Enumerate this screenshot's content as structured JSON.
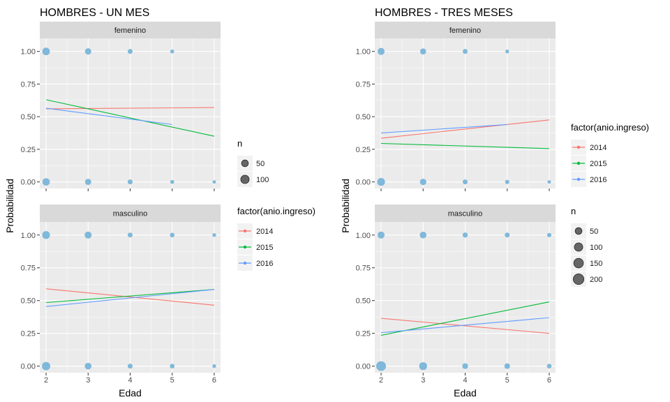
{
  "colors": {
    "panel_bg": "#EBEBEB",
    "strip_bg": "#D9D9D9",
    "grid": "#FFFFFF",
    "text": "#000000",
    "tick_text": "#4D4D4D",
    "point": "#6BAED6",
    "series_2014": "#F8766D",
    "series_2015": "#00BA38",
    "series_2016": "#619CFF"
  },
  "chart_data": [
    {
      "type": "scatter",
      "title": "HOMBRES - UN MES",
      "xlabel": "Edad",
      "ylabel": "Probabilidad",
      "xlim": [
        1.85,
        6.15
      ],
      "ylim": [
        -0.05,
        1.1
      ],
      "x_ticks": [
        2,
        3,
        4,
        5,
        6
      ],
      "y_ticks": [
        0,
        0.25,
        0.5,
        0.75,
        1
      ],
      "y_tick_labels": [
        "0.00",
        "0.25",
        "0.50",
        "0.75",
        "1.00"
      ],
      "grid": true,
      "legends": [
        {
          "title": "n",
          "kind": "size",
          "entries": [
            {
              "label": "50",
              "value": 50
            },
            {
              "label": "100",
              "value": 100
            }
          ]
        },
        {
          "title": "factor(anio.ingreso)",
          "kind": "color",
          "entries": [
            {
              "label": "2014",
              "color_key": "series_2014"
            },
            {
              "label": "2015",
              "color_key": "series_2015"
            },
            {
              "label": "2016",
              "color_key": "series_2016"
            }
          ]
        }
      ],
      "legend_placement": "right",
      "facets": [
        {
          "label": "femenino",
          "points": [
            {
              "x": 2,
              "y": 1,
              "n": 100
            },
            {
              "x": 3,
              "y": 1,
              "n": 60
            },
            {
              "x": 4,
              "y": 1,
              "n": 25
            },
            {
              "x": 5,
              "y": 1,
              "n": 10
            },
            {
              "x": 2,
              "y": 0,
              "n": 95
            },
            {
              "x": 3,
              "y": 0,
              "n": 55
            },
            {
              "x": 4,
              "y": 0,
              "n": 25
            },
            {
              "x": 5,
              "y": 0,
              "n": 10
            },
            {
              "x": 6,
              "y": 0,
              "n": 5
            }
          ],
          "series": [
            {
              "name": "2014",
              "color_key": "series_2014",
              "x": [
                2,
                6
              ],
              "y": [
                0.56,
                0.57
              ]
            },
            {
              "name": "2015",
              "color_key": "series_2015",
              "x": [
                2,
                6
              ],
              "y": [
                0.63,
                0.35
              ]
            },
            {
              "name": "2016",
              "color_key": "series_2016",
              "x": [
                2,
                5
              ],
              "y": [
                0.565,
                0.44
              ]
            }
          ]
        },
        {
          "label": "masculino",
          "points": [
            {
              "x": 2,
              "y": 1,
              "n": 110
            },
            {
              "x": 3,
              "y": 1,
              "n": 80
            },
            {
              "x": 4,
              "y": 1,
              "n": 25
            },
            {
              "x": 5,
              "y": 1,
              "n": 20
            },
            {
              "x": 6,
              "y": 1,
              "n": 8
            },
            {
              "x": 2,
              "y": 0,
              "n": 130
            },
            {
              "x": 3,
              "y": 0,
              "n": 70
            },
            {
              "x": 4,
              "y": 0,
              "n": 25
            },
            {
              "x": 5,
              "y": 0,
              "n": 20
            },
            {
              "x": 6,
              "y": 0,
              "n": 8
            }
          ],
          "series": [
            {
              "name": "2014",
              "color_key": "series_2014",
              "x": [
                2,
                6
              ],
              "y": [
                0.59,
                0.465
              ]
            },
            {
              "name": "2015",
              "color_key": "series_2015",
              "x": [
                2,
                6
              ],
              "y": [
                0.485,
                0.585
              ]
            },
            {
              "name": "2016",
              "color_key": "series_2016",
              "x": [
                2,
                6
              ],
              "y": [
                0.455,
                0.585
              ]
            }
          ]
        }
      ]
    },
    {
      "type": "scatter",
      "title": "HOMBRES - TRES MESES",
      "xlabel": "Edad",
      "ylabel": "Probabilidad",
      "xlim": [
        1.85,
        6.15
      ],
      "ylim": [
        -0.05,
        1.1
      ],
      "x_ticks": [
        2,
        3,
        4,
        5,
        6
      ],
      "y_ticks": [
        0,
        0.25,
        0.5,
        0.75,
        1
      ],
      "y_tick_labels": [
        "0.00",
        "0.25",
        "0.50",
        "0.75",
        "1.00"
      ],
      "grid": true,
      "legends": [
        {
          "title": "factor(anio.ingreso)",
          "kind": "color",
          "entries": [
            {
              "label": "2014",
              "color_key": "series_2014"
            },
            {
              "label": "2015",
              "color_key": "series_2015"
            },
            {
              "label": "2016",
              "color_key": "series_2016"
            }
          ]
        },
        {
          "title": "n",
          "kind": "size",
          "entries": [
            {
              "label": "50",
              "value": 50
            },
            {
              "label": "100",
              "value": 100
            },
            {
              "label": "150",
              "value": 150
            },
            {
              "label": "200",
              "value": 200
            }
          ]
        }
      ],
      "legend_placement": "right",
      "facets": [
        {
          "label": "femenino",
          "points": [
            {
              "x": 2,
              "y": 1,
              "n": 80
            },
            {
              "x": 3,
              "y": 1,
              "n": 50
            },
            {
              "x": 4,
              "y": 1,
              "n": 25
            },
            {
              "x": 5,
              "y": 1,
              "n": 8
            },
            {
              "x": 2,
              "y": 0,
              "n": 110
            },
            {
              "x": 3,
              "y": 0,
              "n": 60
            },
            {
              "x": 4,
              "y": 0,
              "n": 25
            },
            {
              "x": 5,
              "y": 0,
              "n": 15
            },
            {
              "x": 6,
              "y": 0,
              "n": 5
            }
          ],
          "series": [
            {
              "name": "2014",
              "color_key": "series_2014",
              "x": [
                2,
                6
              ],
              "y": [
                0.335,
                0.475
              ]
            },
            {
              "name": "2015",
              "color_key": "series_2015",
              "x": [
                2,
                6
              ],
              "y": [
                0.295,
                0.255
              ]
            },
            {
              "name": "2016",
              "color_key": "series_2016",
              "x": [
                2,
                5
              ],
              "y": [
                0.375,
                0.44
              ]
            }
          ]
        },
        {
          "label": "masculino",
          "points": [
            {
              "x": 2,
              "y": 1,
              "n": 80
            },
            {
              "x": 3,
              "y": 1,
              "n": 70
            },
            {
              "x": 4,
              "y": 1,
              "n": 30
            },
            {
              "x": 5,
              "y": 1,
              "n": 25
            },
            {
              "x": 6,
              "y": 1,
              "n": 15
            },
            {
              "x": 2,
              "y": 0,
              "n": 200
            },
            {
              "x": 3,
              "y": 0,
              "n": 110
            },
            {
              "x": 4,
              "y": 0,
              "n": 45
            },
            {
              "x": 5,
              "y": 0,
              "n": 40
            },
            {
              "x": 6,
              "y": 0,
              "n": 20
            }
          ],
          "series": [
            {
              "name": "2014",
              "color_key": "series_2014",
              "x": [
                2,
                6
              ],
              "y": [
                0.365,
                0.25
              ]
            },
            {
              "name": "2015",
              "color_key": "series_2015",
              "x": [
                2,
                6
              ],
              "y": [
                0.235,
                0.49
              ]
            },
            {
              "name": "2016",
              "color_key": "series_2016",
              "x": [
                2,
                6
              ],
              "y": [
                0.255,
                0.37
              ]
            }
          ]
        }
      ]
    }
  ]
}
